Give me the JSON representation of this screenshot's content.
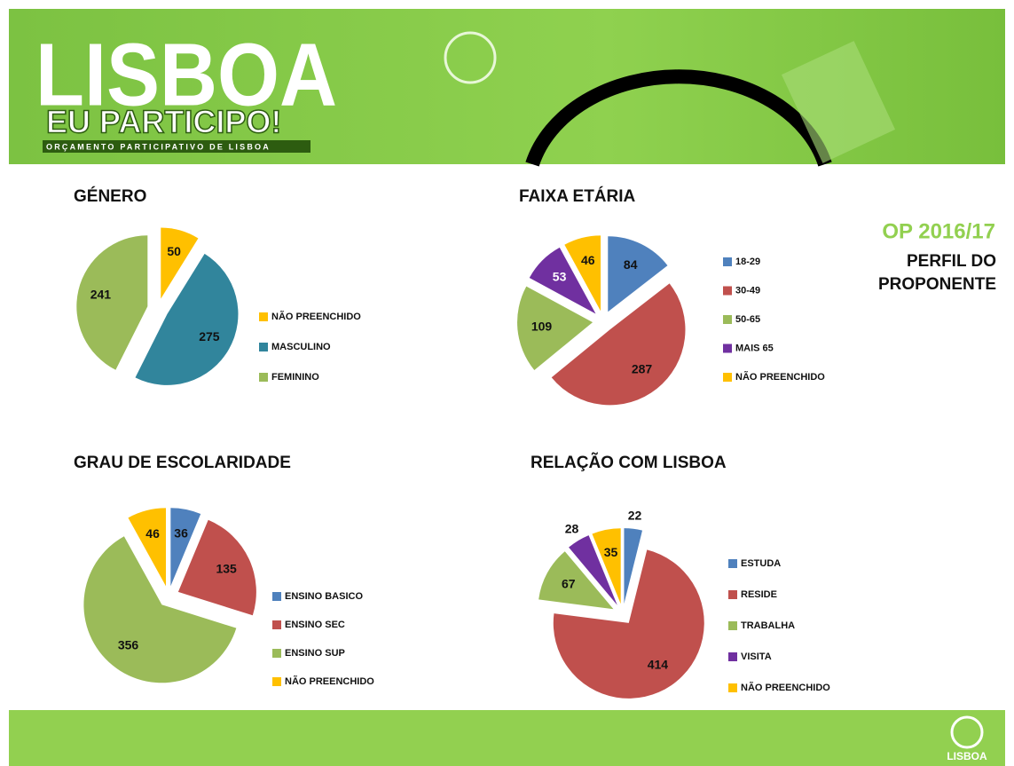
{
  "header": {
    "title": "LISBOA",
    "subtitle": "EU PARTICIPO!",
    "tagline": "ORÇAMENTO PARTICIPATIVO DE LISBOA"
  },
  "side": {
    "edition": "OP 2016/17",
    "heading": "PERFIL DO PROPONENTE"
  },
  "footer": {
    "logo": "LISBOA"
  },
  "chart_data": [
    {
      "type": "pie",
      "title": "GÉNERO",
      "categories": [
        "NÃO PREENCHIDO",
        "MASCULINO",
        "FEMININO"
      ],
      "values": [
        50,
        275,
        241
      ],
      "colors": [
        "#ffc000",
        "#31859c",
        "#9bbb59"
      ]
    },
    {
      "type": "pie",
      "title": "FAIXA ETÁRIA",
      "categories": [
        "18-29",
        "30-49",
        "50-65",
        "MAIS 65",
        "NÃO PREENCHIDO"
      ],
      "values": [
        84,
        287,
        109,
        53,
        46
      ],
      "colors": [
        "#4f81bd",
        "#c0504d",
        "#9bbb59",
        "#7030a0",
        "#ffc000"
      ]
    },
    {
      "type": "pie",
      "title": "GRAU DE ESCOLARIDADE",
      "categories": [
        "ENSINO BASICO",
        "ENSINO SEC",
        "ENSINO SUP",
        "NÃO PREENCHIDO"
      ],
      "values": [
        36,
        135,
        356,
        46
      ],
      "colors": [
        "#4f81bd",
        "#c0504d",
        "#9bbb59",
        "#ffc000"
      ]
    },
    {
      "type": "pie",
      "title": "RELAÇÃO COM LISBOA",
      "categories": [
        "ESTUDA",
        "RESIDE",
        "TRABALHA",
        "VISITA",
        "NÃO PREENCHIDO"
      ],
      "values": [
        22,
        414,
        67,
        28,
        35
      ],
      "colors": [
        "#4f81bd",
        "#c0504d",
        "#9bbb59",
        "#7030a0",
        "#ffc000"
      ]
    }
  ]
}
